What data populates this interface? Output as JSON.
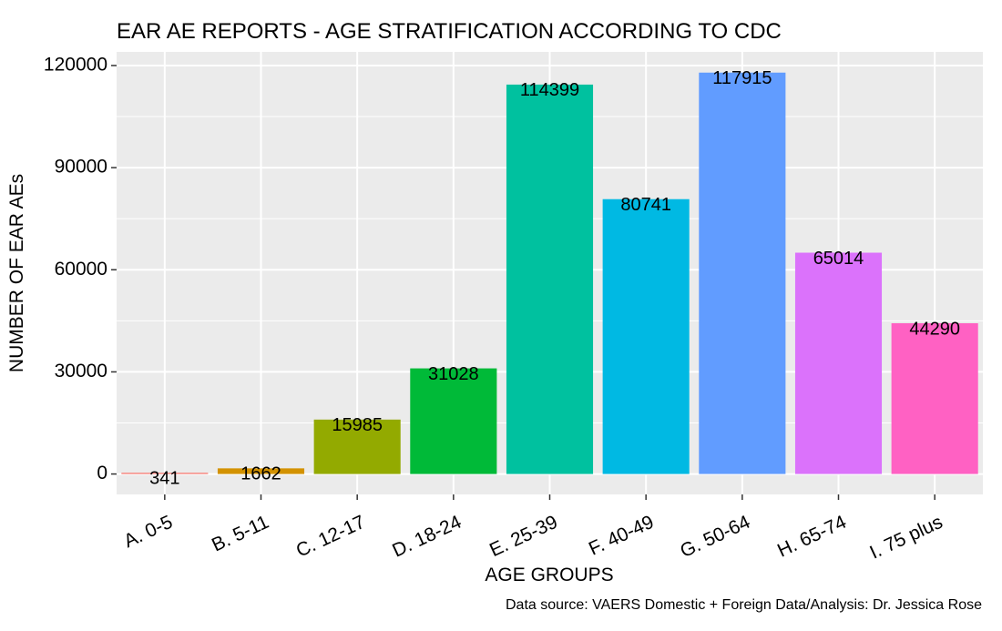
{
  "chart_data": {
    "type": "bar",
    "title": "EAR AE REPORTS - AGE STRATIFICATION ACCORDING TO CDC",
    "xlabel": "AGE GROUPS",
    "ylabel": "NUMBER OF EAR AEs",
    "caption": "Data source: VAERS Domestic + Foreign Data/Analysis: Dr. Jessica Rose",
    "categories": [
      "A. 0-5",
      "B. 5-11",
      "C. 12-17",
      "D. 18-24",
      "E. 25-39",
      "F. 40-49",
      "G. 50-64",
      "H. 65-74",
      "I. 75 plus"
    ],
    "values": [
      341,
      1662,
      15985,
      31028,
      114399,
      80741,
      117915,
      65014,
      44290
    ],
    "colors": [
      "#F8766D",
      "#D39200",
      "#93AA00",
      "#00BA38",
      "#00C19F",
      "#00B9E3",
      "#619CFF",
      "#DB72FB",
      "#FF61C3"
    ],
    "ylim": [
      -6000,
      124000
    ],
    "yticks": [
      0,
      30000,
      60000,
      90000,
      120000
    ],
    "ytick_labels": [
      "0",
      "30000",
      "60000",
      "90000",
      "120000"
    ],
    "data_labels": [
      "341",
      "1662",
      "15985",
      "31028",
      "114399",
      "80741",
      "117915",
      "65014",
      "44290"
    ],
    "grid": true,
    "panel_color": "#EBEBEB",
    "legend": "none"
  }
}
